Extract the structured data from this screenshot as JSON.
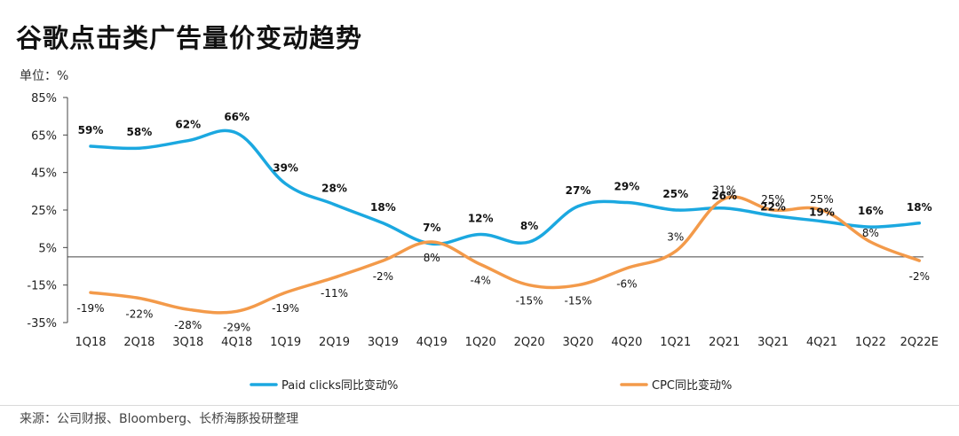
{
  "header": {
    "title": "谷歌点击类广告量价变动趋势",
    "unit_label": "单位：%"
  },
  "footer": {
    "source": "来源：公司财报、Bloomberg、长桥海豚投研整理"
  },
  "colors": {
    "paid_clicks": "#1ba8e0",
    "cpc": "#f39a4a",
    "axis": "#444444",
    "tick_text": "#222222"
  },
  "chart_data": {
    "type": "line",
    "title": "谷歌点击类广告量价变动趋势",
    "ylabel": "单位：%",
    "xlabel": "",
    "categories": [
      "1Q18",
      "2Q18",
      "3Q18",
      "4Q18",
      "1Q19",
      "2Q19",
      "3Q19",
      "4Q19",
      "1Q20",
      "2Q20",
      "3Q20",
      "4Q20",
      "1Q21",
      "2Q21",
      "3Q21",
      "4Q21",
      "1Q22",
      "2Q22E"
    ],
    "ylim": [
      -35,
      85
    ],
    "yticks": [
      85,
      65,
      45,
      25,
      5,
      -15,
      -35
    ],
    "ytick_labels": [
      "85%",
      "65%",
      "45%",
      "25%",
      "5%",
      "-15%",
      "-35%"
    ],
    "grid": false,
    "legend_position": "bottom",
    "series": [
      {
        "name": "Paid clicks同比变动%",
        "values": [
          59,
          58,
          62,
          66,
          39,
          28,
          18,
          7,
          12,
          8,
          27,
          29,
          25,
          26,
          22,
          19,
          16,
          18
        ],
        "labels": [
          "59%",
          "58%",
          "62%",
          "66%",
          "39%",
          "28%",
          "18%",
          "7%",
          "12%",
          "8%",
          "27%",
          "29%",
          "25%",
          "26%",
          "22%",
          "19%",
          "16%",
          "18%"
        ]
      },
      {
        "name": "CPC同比变动%",
        "values": [
          -19,
          -22,
          -28,
          -29,
          -19,
          -11,
          -2,
          8,
          -4,
          -15,
          -15,
          -6,
          3,
          31,
          25,
          25,
          8,
          -2
        ],
        "labels": [
          "-19%",
          "-22%",
          "-28%",
          "-29%",
          "-19%",
          "-11%",
          "-2%",
          "8%",
          "-4%",
          "-15%",
          "-15%",
          "-6%",
          "3%",
          "31%",
          "25%",
          "25%",
          "8%",
          "-2%"
        ]
      }
    ]
  }
}
